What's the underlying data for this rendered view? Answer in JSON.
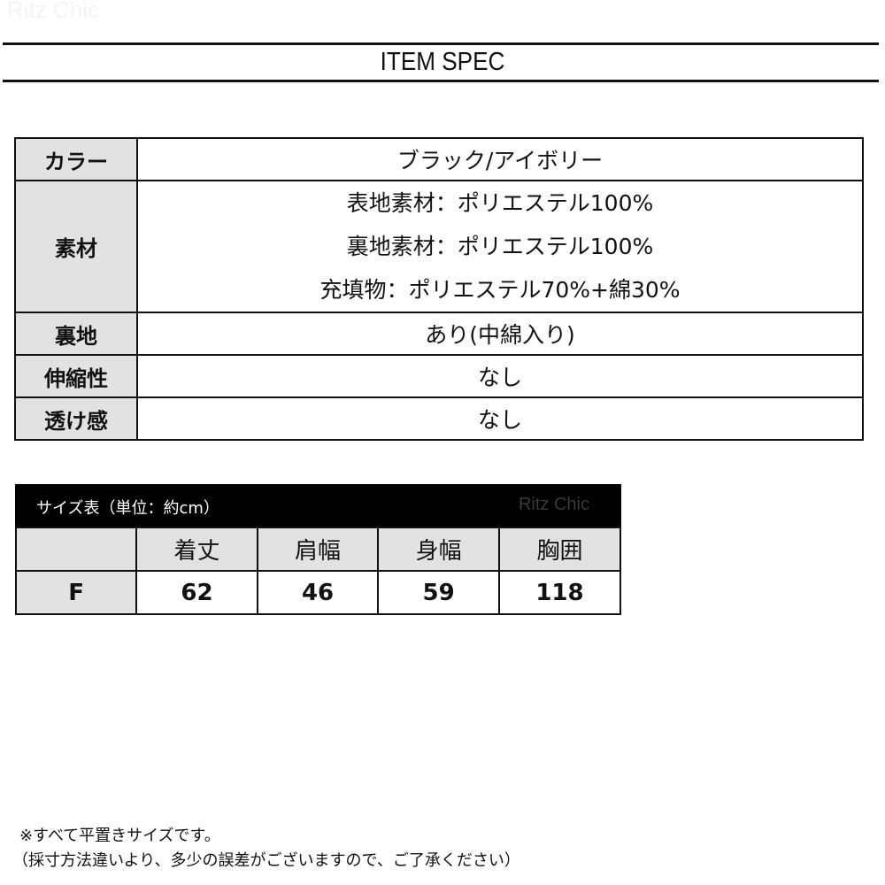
{
  "watermark": "Ritz Chic",
  "title": "ITEM SPEC",
  "spec": [
    {
      "label": "カラー",
      "values": [
        "ブラック/アイボリー"
      ]
    },
    {
      "label": "素材",
      "values": [
        "表地素材：ポリエステル100%",
        "裏地素材：ポリエステル100%",
        "充填物：ポリエステル70%+綿30%"
      ]
    },
    {
      "label": "裏地",
      "values": [
        "あり(中綿入り)"
      ]
    },
    {
      "label": "伸縮性",
      "values": [
        "なし"
      ]
    },
    {
      "label": "透け感",
      "values": [
        "なし"
      ]
    }
  ],
  "size_table": {
    "title": "サイズ表（単位：約cm）",
    "brand": "Ritz Chic",
    "headers": [
      "",
      "着丈",
      "肩幅",
      "身幅",
      "胸囲"
    ],
    "rows": [
      [
        "F",
        "62",
        "46",
        "59",
        "118"
      ]
    ]
  },
  "notes": [
    "※すべて平置きサイズです。",
    "（採寸方法違いより、多少の誤差がございますので、ご了承ください）"
  ]
}
